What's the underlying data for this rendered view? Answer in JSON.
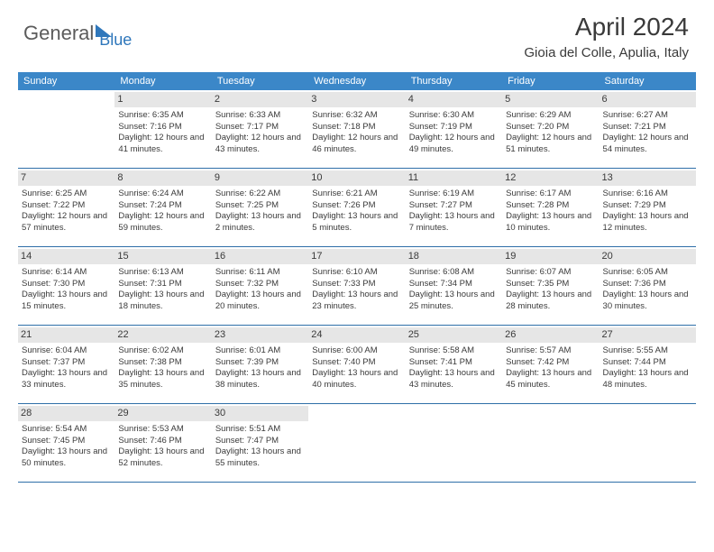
{
  "logo": {
    "text1": "General",
    "text2": "Blue"
  },
  "header": {
    "month": "April 2024",
    "location": "Gioia del Colle, Apulia, Italy"
  },
  "colors": {
    "header_bg": "#3b87c8",
    "header_text": "#ffffff",
    "daynum_bg": "#e6e6e6",
    "body_text": "#3a3a3a",
    "row_border": "#2f6fa8",
    "logo_gray": "#5b5b5b",
    "logo_blue": "#2f77bb"
  },
  "weekdays": [
    "Sunday",
    "Monday",
    "Tuesday",
    "Wednesday",
    "Thursday",
    "Friday",
    "Saturday"
  ],
  "weeks": [
    [
      {
        "num": "",
        "lines": []
      },
      {
        "num": "1",
        "lines": [
          "Sunrise: 6:35 AM",
          "Sunset: 7:16 PM",
          "Daylight: 12 hours and 41 minutes."
        ]
      },
      {
        "num": "2",
        "lines": [
          "Sunrise: 6:33 AM",
          "Sunset: 7:17 PM",
          "Daylight: 12 hours and 43 minutes."
        ]
      },
      {
        "num": "3",
        "lines": [
          "Sunrise: 6:32 AM",
          "Sunset: 7:18 PM",
          "Daylight: 12 hours and 46 minutes."
        ]
      },
      {
        "num": "4",
        "lines": [
          "Sunrise: 6:30 AM",
          "Sunset: 7:19 PM",
          "Daylight: 12 hours and 49 minutes."
        ]
      },
      {
        "num": "5",
        "lines": [
          "Sunrise: 6:29 AM",
          "Sunset: 7:20 PM",
          "Daylight: 12 hours and 51 minutes."
        ]
      },
      {
        "num": "6",
        "lines": [
          "Sunrise: 6:27 AM",
          "Sunset: 7:21 PM",
          "Daylight: 12 hours and 54 minutes."
        ]
      }
    ],
    [
      {
        "num": "7",
        "lines": [
          "Sunrise: 6:25 AM",
          "Sunset: 7:22 PM",
          "Daylight: 12 hours and 57 minutes."
        ]
      },
      {
        "num": "8",
        "lines": [
          "Sunrise: 6:24 AM",
          "Sunset: 7:24 PM",
          "Daylight: 12 hours and 59 minutes."
        ]
      },
      {
        "num": "9",
        "lines": [
          "Sunrise: 6:22 AM",
          "Sunset: 7:25 PM",
          "Daylight: 13 hours and 2 minutes."
        ]
      },
      {
        "num": "10",
        "lines": [
          "Sunrise: 6:21 AM",
          "Sunset: 7:26 PM",
          "Daylight: 13 hours and 5 minutes."
        ]
      },
      {
        "num": "11",
        "lines": [
          "Sunrise: 6:19 AM",
          "Sunset: 7:27 PM",
          "Daylight: 13 hours and 7 minutes."
        ]
      },
      {
        "num": "12",
        "lines": [
          "Sunrise: 6:17 AM",
          "Sunset: 7:28 PM",
          "Daylight: 13 hours and 10 minutes."
        ]
      },
      {
        "num": "13",
        "lines": [
          "Sunrise: 6:16 AM",
          "Sunset: 7:29 PM",
          "Daylight: 13 hours and 12 minutes."
        ]
      }
    ],
    [
      {
        "num": "14",
        "lines": [
          "Sunrise: 6:14 AM",
          "Sunset: 7:30 PM",
          "Daylight: 13 hours and 15 minutes."
        ]
      },
      {
        "num": "15",
        "lines": [
          "Sunrise: 6:13 AM",
          "Sunset: 7:31 PM",
          "Daylight: 13 hours and 18 minutes."
        ]
      },
      {
        "num": "16",
        "lines": [
          "Sunrise: 6:11 AM",
          "Sunset: 7:32 PM",
          "Daylight: 13 hours and 20 minutes."
        ]
      },
      {
        "num": "17",
        "lines": [
          "Sunrise: 6:10 AM",
          "Sunset: 7:33 PM",
          "Daylight: 13 hours and 23 minutes."
        ]
      },
      {
        "num": "18",
        "lines": [
          "Sunrise: 6:08 AM",
          "Sunset: 7:34 PM",
          "Daylight: 13 hours and 25 minutes."
        ]
      },
      {
        "num": "19",
        "lines": [
          "Sunrise: 6:07 AM",
          "Sunset: 7:35 PM",
          "Daylight: 13 hours and 28 minutes."
        ]
      },
      {
        "num": "20",
        "lines": [
          "Sunrise: 6:05 AM",
          "Sunset: 7:36 PM",
          "Daylight: 13 hours and 30 minutes."
        ]
      }
    ],
    [
      {
        "num": "21",
        "lines": [
          "Sunrise: 6:04 AM",
          "Sunset: 7:37 PM",
          "Daylight: 13 hours and 33 minutes."
        ]
      },
      {
        "num": "22",
        "lines": [
          "Sunrise: 6:02 AM",
          "Sunset: 7:38 PM",
          "Daylight: 13 hours and 35 minutes."
        ]
      },
      {
        "num": "23",
        "lines": [
          "Sunrise: 6:01 AM",
          "Sunset: 7:39 PM",
          "Daylight: 13 hours and 38 minutes."
        ]
      },
      {
        "num": "24",
        "lines": [
          "Sunrise: 6:00 AM",
          "Sunset: 7:40 PM",
          "Daylight: 13 hours and 40 minutes."
        ]
      },
      {
        "num": "25",
        "lines": [
          "Sunrise: 5:58 AM",
          "Sunset: 7:41 PM",
          "Daylight: 13 hours and 43 minutes."
        ]
      },
      {
        "num": "26",
        "lines": [
          "Sunrise: 5:57 AM",
          "Sunset: 7:42 PM",
          "Daylight: 13 hours and 45 minutes."
        ]
      },
      {
        "num": "27",
        "lines": [
          "Sunrise: 5:55 AM",
          "Sunset: 7:44 PM",
          "Daylight: 13 hours and 48 minutes."
        ]
      }
    ],
    [
      {
        "num": "28",
        "lines": [
          "Sunrise: 5:54 AM",
          "Sunset: 7:45 PM",
          "Daylight: 13 hours and 50 minutes."
        ]
      },
      {
        "num": "29",
        "lines": [
          "Sunrise: 5:53 AM",
          "Sunset: 7:46 PM",
          "Daylight: 13 hours and 52 minutes."
        ]
      },
      {
        "num": "30",
        "lines": [
          "Sunrise: 5:51 AM",
          "Sunset: 7:47 PM",
          "Daylight: 13 hours and 55 minutes."
        ]
      },
      {
        "num": "",
        "lines": []
      },
      {
        "num": "",
        "lines": []
      },
      {
        "num": "",
        "lines": []
      },
      {
        "num": "",
        "lines": []
      }
    ]
  ]
}
